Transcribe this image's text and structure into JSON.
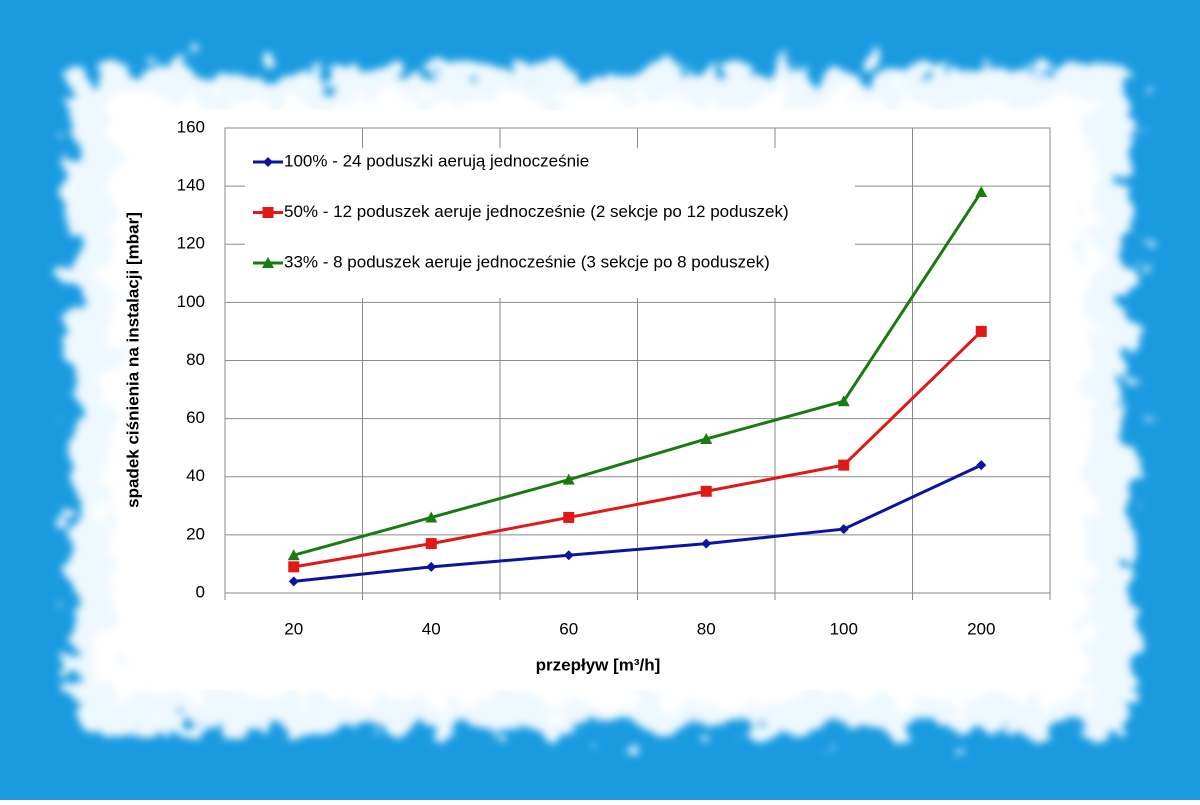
{
  "chart_data": {
    "type": "line",
    "x_label": "przepływ [m³/h]",
    "y_label": "spadek ciśnienia na instalacji [mbar]",
    "categories": [
      "20",
      "40",
      "60",
      "80",
      "100",
      "200"
    ],
    "series": [
      {
        "name": "100% - 24 poduszki aerują jednocześnie",
        "color": "#0a14a0",
        "marker": "diamond",
        "values": [
          4,
          9,
          13,
          17,
          22,
          44
        ]
      },
      {
        "name": "50% - 12 poduszek aeruje jednocześnie (2 sekcje po 12 poduszek)",
        "color": "#e01818",
        "marker": "square",
        "values": [
          9,
          17,
          26,
          35,
          44,
          90
        ]
      },
      {
        "name": "33% - 8 poduszek aeruje jednocześnie (3 sekcje po 8 poduszek)",
        "color": "#1a7a12",
        "marker": "triangle",
        "values": [
          13,
          26,
          39,
          53,
          66,
          138
        ]
      }
    ],
    "ylim": [
      0,
      160
    ],
    "yticks": [
      0,
      20,
      40,
      60,
      80,
      100,
      120,
      140,
      160
    ],
    "grid": true,
    "legend": "upper left"
  }
}
